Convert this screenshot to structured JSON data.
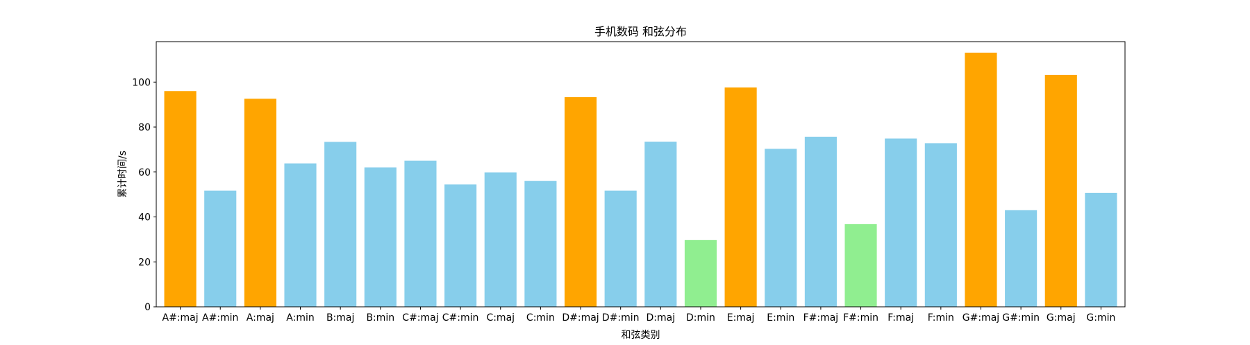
{
  "chart_data": {
    "type": "bar",
    "title": "手机数码 和弦分布",
    "xlabel": "和弦类别",
    "ylabel": "累计时间/s",
    "ylim": [
      0,
      118
    ],
    "yticks": [
      0,
      20,
      40,
      60,
      80,
      100
    ],
    "grid": false,
    "legend": "none",
    "categories": [
      "A#:maj",
      "A#:min",
      "A:maj",
      "A:min",
      "B:maj",
      "B:min",
      "C#:maj",
      "C#:min",
      "C:maj",
      "C:min",
      "D#:maj",
      "D#:min",
      "D:maj",
      "D:min",
      "E:maj",
      "E:min",
      "F#:maj",
      "F#:min",
      "F:maj",
      "F:min",
      "G#:maj",
      "G#:min",
      "G:maj",
      "G:min"
    ],
    "values": [
      96,
      51.7,
      92.6,
      63.8,
      73.4,
      62,
      65,
      54.5,
      59.8,
      56,
      93.3,
      51.7,
      73.5,
      29.7,
      97.6,
      70.3,
      75.7,
      36.8,
      74.9,
      72.8,
      113.1,
      43,
      103.2,
      50.7
    ],
    "colors": [
      "#FFA500",
      "#87CEEB",
      "#FFA500",
      "#87CEEB",
      "#87CEEB",
      "#87CEEB",
      "#87CEEB",
      "#87CEEB",
      "#87CEEB",
      "#87CEEB",
      "#FFA500",
      "#87CEEB",
      "#87CEEB",
      "#90EE90",
      "#FFA500",
      "#87CEEB",
      "#87CEEB",
      "#90EE90",
      "#87CEEB",
      "#87CEEB",
      "#FFA500",
      "#87CEEB",
      "#FFA500",
      "#87CEEB"
    ]
  }
}
